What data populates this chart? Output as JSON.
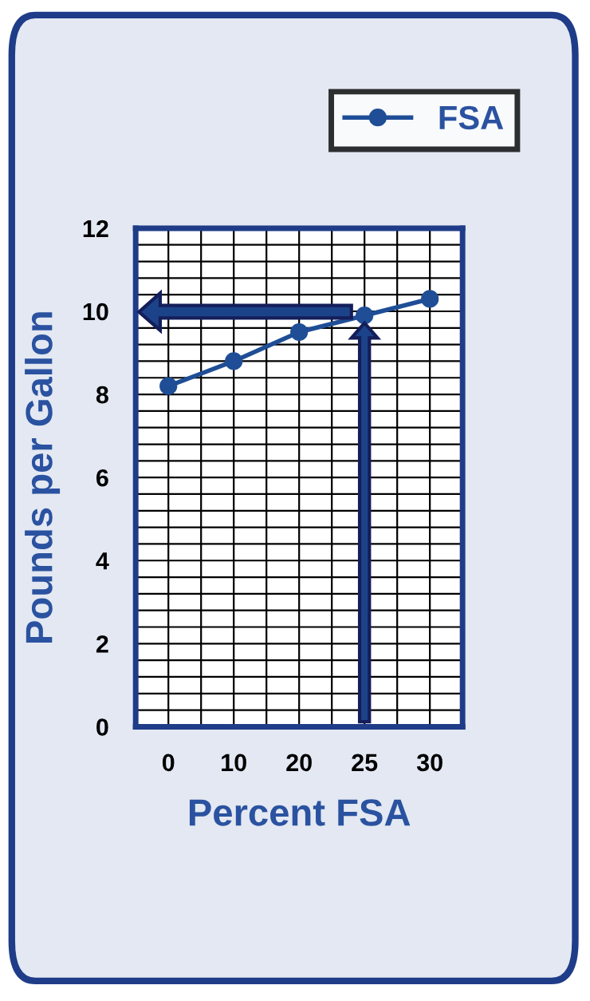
{
  "chart_data": {
    "type": "line",
    "xlabel": "Percent FSA",
    "ylabel": "Pounds per Gallon",
    "categories": [
      "0",
      "10",
      "20",
      "25",
      "30"
    ],
    "series": [
      {
        "name": "FSA",
        "color": "#1f4e96",
        "values": [
          8.2,
          8.8,
          9.5,
          9.9,
          10.3
        ]
      }
    ],
    "ylim": [
      0,
      12
    ],
    "yticks": [
      0,
      2,
      4,
      6,
      8,
      10,
      12
    ],
    "grid": true,
    "legend": "top right",
    "marker": "circle",
    "line_style": "solid"
  }
}
